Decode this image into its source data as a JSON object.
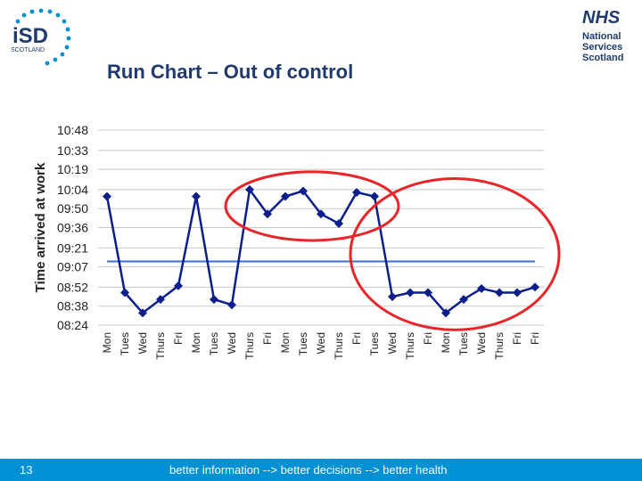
{
  "slide": {
    "title": "Run Chart – Out of control",
    "page_number": "13",
    "footer_text": "better information --> better decisions --> better health"
  },
  "logos": {
    "isd": {
      "letters": "iSD",
      "sub": "SCOTLAND"
    },
    "nhs": {
      "line1": "NHS",
      "line2": "National",
      "line3": "Services",
      "line4": "Scotland"
    }
  },
  "colors": {
    "line": "#0d1f8c",
    "marker": "#0d1f8c",
    "median": "#3a6fd8",
    "circle": "#e8262a",
    "grid": "#c8c8c8",
    "footer": "#0091d5",
    "title": "#1f3a6e"
  },
  "chart_data": {
    "type": "line",
    "title": "",
    "ylabel": "Time arrived at work",
    "xlabel": "",
    "y_ticks": [
      "08:24",
      "08:38",
      "08:52",
      "09:07",
      "09:21",
      "09:36",
      "09:50",
      "10:04",
      "10:19",
      "10:33",
      "10:48"
    ],
    "ylim": [
      "08:24",
      "10:48"
    ],
    "grid": true,
    "categories": [
      "Mon",
      "Tues",
      "Wed",
      "Thurs",
      "Fri",
      "Mon",
      "Tues",
      "Wed",
      "Thurs",
      "Fri",
      "Mon",
      "Tues",
      "Wed",
      "Thurs",
      "Fri",
      "Tues",
      "Wed",
      "Thurs",
      "Fri",
      "Mon",
      "Tues",
      "Wed",
      "Thurs",
      "Fri",
      "Fri"
    ],
    "x_tick_labels": [
      "Mon",
      "Tues",
      "Wed",
      "Thurs",
      "Fri",
      "Mon",
      "Tues",
      "Wed",
      "Thurs",
      "Fri",
      "Mon",
      "Tues",
      "Wed",
      "Thurs",
      "Fri",
      "Tues",
      "Wed",
      "Thurs",
      "Fri",
      "Mon",
      "Tues",
      "Wed",
      "Thurs",
      "Fri",
      "Fri"
    ],
    "series": [
      {
        "values": [
          "09:59",
          "08:48",
          "08:33",
          "08:43",
          "08:53",
          "09:59",
          "08:43",
          "08:39",
          "10:04",
          "09:46",
          "09:59",
          "10:03",
          "09:46",
          "09:39",
          "10:02",
          "09:59",
          "08:45",
          "08:48",
          "08:48",
          "08:33",
          "08:43",
          "08:51",
          "08:48",
          "08:48",
          "08:52"
        ]
      }
    ],
    "median": "09:11",
    "annotations": [
      {
        "shape": "ellipse",
        "from_index": 8,
        "to_index": 15,
        "color": "red"
      },
      {
        "shape": "ellipse",
        "from_index": 15,
        "to_index": 24,
        "color": "red"
      }
    ]
  }
}
